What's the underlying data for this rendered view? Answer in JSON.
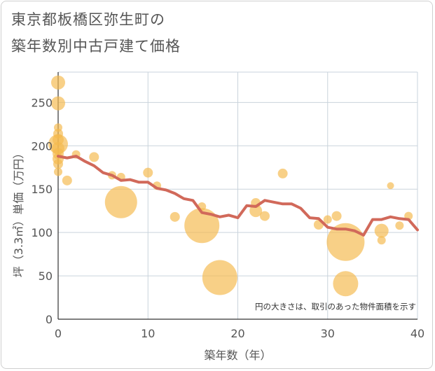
{
  "title_line1": "東京都板橋区弥生町の",
  "title_line2": "築年数別中古戸建て価格",
  "chart_data": {
    "type": "scatter",
    "xlabel": "築年数（年）",
    "ylabel": "坪（3.3㎡）単価（万円）",
    "xlim": [
      0,
      40
    ],
    "ylim": [
      0,
      285
    ],
    "xticks": [
      0,
      10,
      20,
      30,
      40
    ],
    "yticks": [
      0,
      50,
      100,
      150,
      200,
      250
    ],
    "grid": true,
    "note": "円の大きさは、取引のあった物件面積を示す",
    "colors": {
      "bubble": "#f5b94e",
      "line": "#d1695a",
      "grid": "#c9d3dc"
    },
    "bubbles": [
      {
        "x": 0,
        "y": 273,
        "s": 10
      },
      {
        "x": 0,
        "y": 249,
        "s": 10
      },
      {
        "x": 0,
        "y": 221,
        "s": 6
      },
      {
        "x": 0,
        "y": 214,
        "s": 7
      },
      {
        "x": 0,
        "y": 207,
        "s": 8
      },
      {
        "x": 0,
        "y": 202,
        "s": 14
      },
      {
        "x": 0,
        "y": 197,
        "s": 9
      },
      {
        "x": 0,
        "y": 191,
        "s": 8
      },
      {
        "x": 0,
        "y": 185,
        "s": 8
      },
      {
        "x": 0,
        "y": 179,
        "s": 7
      },
      {
        "x": 0,
        "y": 170,
        "s": 6
      },
      {
        "x": 1,
        "y": 160,
        "s": 7
      },
      {
        "x": 2,
        "y": 190,
        "s": 6
      },
      {
        "x": 4,
        "y": 187,
        "s": 7
      },
      {
        "x": 6,
        "y": 166,
        "s": 6
      },
      {
        "x": 7,
        "y": 164,
        "s": 6
      },
      {
        "x": 7,
        "y": 135,
        "s": 23
      },
      {
        "x": 10,
        "y": 169,
        "s": 7
      },
      {
        "x": 11,
        "y": 154,
        "s": 6
      },
      {
        "x": 13,
        "y": 118,
        "s": 7
      },
      {
        "x": 16,
        "y": 130,
        "s": 6
      },
      {
        "x": 16,
        "y": 108,
        "s": 25
      },
      {
        "x": 18,
        "y": 48,
        "s": 25
      },
      {
        "x": 22,
        "y": 134,
        "s": 7
      },
      {
        "x": 22,
        "y": 125,
        "s": 9
      },
      {
        "x": 23,
        "y": 119,
        "s": 7
      },
      {
        "x": 25,
        "y": 168,
        "s": 7
      },
      {
        "x": 29,
        "y": 109,
        "s": 7
      },
      {
        "x": 30,
        "y": 115,
        "s": 6
      },
      {
        "x": 31,
        "y": 119,
        "s": 7
      },
      {
        "x": 32,
        "y": 89,
        "s": 27
      },
      {
        "x": 32,
        "y": 41,
        "s": 18
      },
      {
        "x": 36,
        "y": 102,
        "s": 10
      },
      {
        "x": 36,
        "y": 91,
        "s": 6
      },
      {
        "x": 37,
        "y": 154,
        "s": 5
      },
      {
        "x": 38,
        "y": 108,
        "s": 6
      },
      {
        "x": 39,
        "y": 119,
        "s": 6
      }
    ],
    "series": [
      {
        "x": [
          0,
          1,
          2,
          3,
          4,
          5,
          6,
          7,
          8,
          9,
          10,
          11,
          12,
          13,
          14,
          15,
          16,
          17,
          18,
          19,
          20,
          21,
          22,
          23,
          24,
          25,
          26,
          27,
          28,
          29,
          30,
          31,
          32,
          33,
          34,
          35,
          36,
          37,
          38,
          39,
          40
        ],
        "y": [
          188,
          186,
          188,
          182,
          177,
          169,
          166,
          160,
          161,
          158,
          158,
          151,
          149,
          145,
          139,
          137,
          123,
          121,
          118,
          120,
          117,
          131,
          130,
          137,
          135,
          133,
          133,
          128,
          117,
          116,
          106,
          104,
          104,
          102,
          97,
          115,
          115,
          118,
          116,
          115,
          103
        ]
      }
    ]
  }
}
